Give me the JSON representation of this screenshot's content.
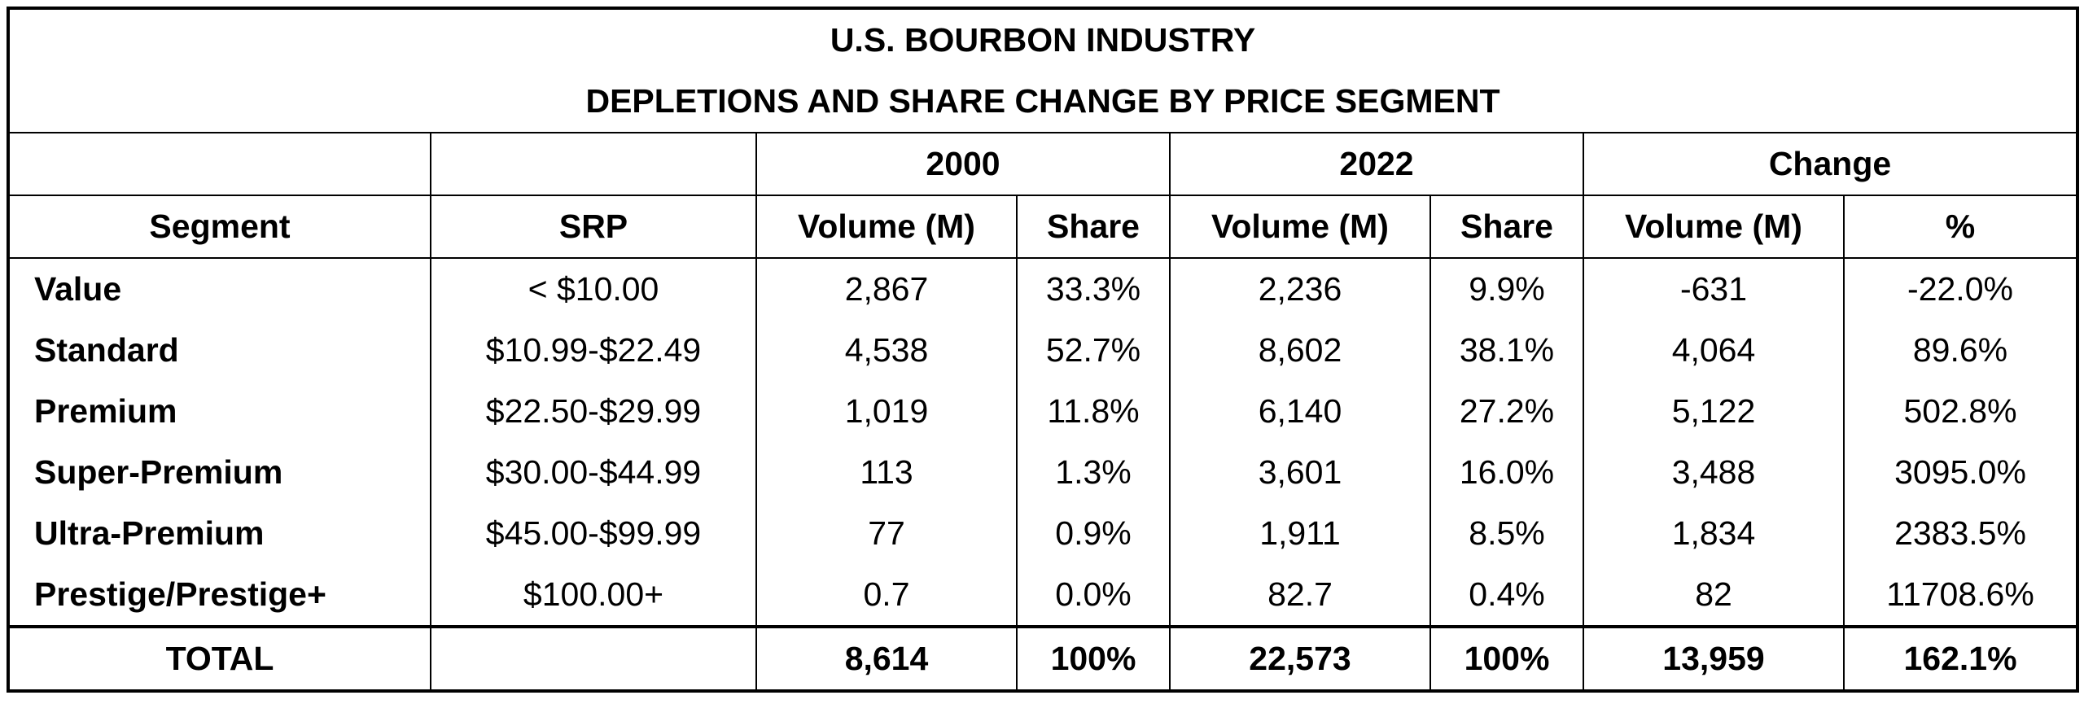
{
  "title_line1": "U.S. BOURBON INDUSTRY",
  "title_line2": "DEPLETIONS AND SHARE CHANGE BY PRICE SEGMENT",
  "groups": {
    "y2000": "2000",
    "y2022": "2022",
    "change": "Change"
  },
  "headers": {
    "segment": "Segment",
    "srp": "SRP",
    "vol2000": "Volume (M)",
    "share2000": "Share",
    "vol2022": "Volume (M)",
    "share2022": "Share",
    "volchange": "Volume (M)",
    "pctchange": "%"
  },
  "rows": [
    {
      "segment": "Value",
      "srp": "< $10.00",
      "vol2000": "2,867",
      "share2000": "33.3%",
      "vol2022": "2,236",
      "share2022": "9.9%",
      "volchange": "-631",
      "pctchange": "-22.0%"
    },
    {
      "segment": "Standard",
      "srp": "$10.99-$22.49",
      "vol2000": "4,538",
      "share2000": "52.7%",
      "vol2022": "8,602",
      "share2022": "38.1%",
      "volchange": "4,064",
      "pctchange": "89.6%"
    },
    {
      "segment": "Premium",
      "srp": "$22.50-$29.99",
      "vol2000": "1,019",
      "share2000": "11.8%",
      "vol2022": "6,140",
      "share2022": "27.2%",
      "volchange": "5,122",
      "pctchange": "502.8%"
    },
    {
      "segment": "Super-Premium",
      "srp": "$30.00-$44.99",
      "vol2000": "113",
      "share2000": "1.3%",
      "vol2022": "3,601",
      "share2022": "16.0%",
      "volchange": "3,488",
      "pctchange": "3095.0%"
    },
    {
      "segment": "Ultra-Premium",
      "srp": "$45.00-$99.99",
      "vol2000": "77",
      "share2000": "0.9%",
      "vol2022": "1,911",
      "share2022": "8.5%",
      "volchange": "1,834",
      "pctchange": "2383.5%"
    },
    {
      "segment": "Prestige/Prestige+",
      "srp": "$100.00+",
      "vol2000": "0.7",
      "share2000": "0.0%",
      "vol2022": "82.7",
      "share2022": "0.4%",
      "volchange": "82",
      "pctchange": "11708.6%"
    }
  ],
  "total": {
    "segment": "TOTAL",
    "srp": "",
    "vol2000": "8,614",
    "share2000": "100%",
    "vol2022": "22,573",
    "share2022": "100%",
    "volchange": "13,959",
    "pctchange": "162.1%"
  }
}
